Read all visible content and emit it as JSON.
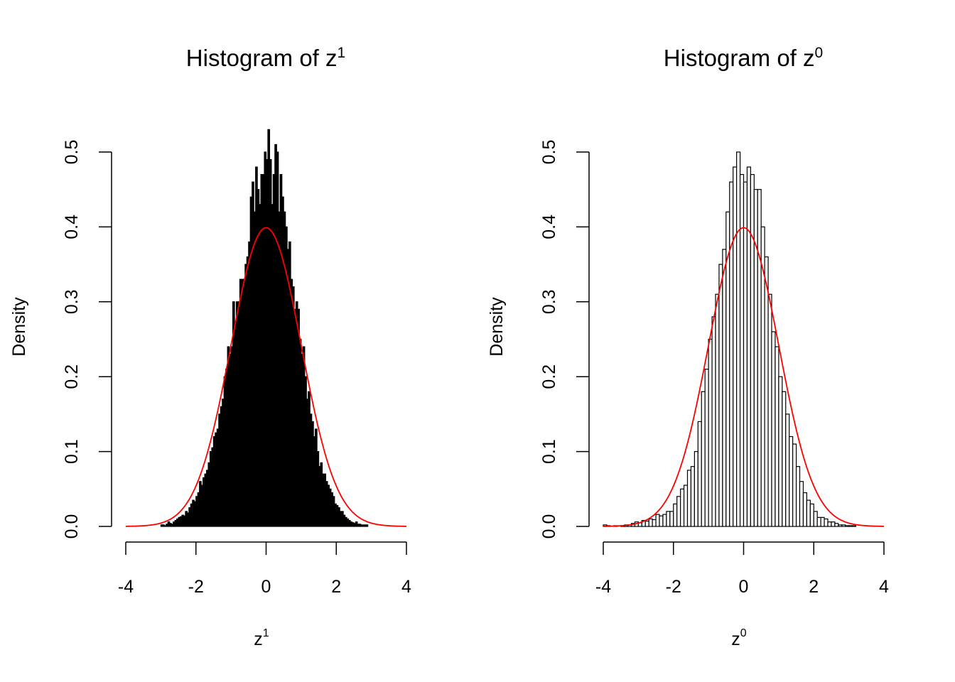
{
  "chart_data": [
    {
      "type": "bar",
      "title": "Histogram of z",
      "title_sup": "1",
      "xlabel": "z",
      "xlabel_sup": "1",
      "ylabel": "Density",
      "xlim": [
        -4,
        4
      ],
      "ylim": [
        0,
        0.5
      ],
      "xticks": [
        "-4",
        "-2",
        "0",
        "2",
        "4"
      ],
      "yticks": [
        "0.0",
        "0.1",
        "0.2",
        "0.3",
        "0.4",
        "0.5"
      ],
      "bin_width": 0.05,
      "bins_x": [
        -3.0,
        -2.95,
        -2.9,
        -2.85,
        -2.8,
        -2.75,
        -2.7,
        -2.65,
        -2.6,
        -2.55,
        -2.5,
        -2.45,
        -2.4,
        -2.35,
        -2.3,
        -2.25,
        -2.2,
        -2.15,
        -2.1,
        -2.05,
        -2.0,
        -1.95,
        -1.9,
        -1.85,
        -1.8,
        -1.75,
        -1.7,
        -1.65,
        -1.6,
        -1.55,
        -1.5,
        -1.45,
        -1.4,
        -1.35,
        -1.3,
        -1.25,
        -1.2,
        -1.15,
        -1.1,
        -1.05,
        -1.0,
        -0.95,
        -0.9,
        -0.85,
        -0.8,
        -0.75,
        -0.7,
        -0.65,
        -0.6,
        -0.55,
        -0.5,
        -0.45,
        -0.4,
        -0.35,
        -0.3,
        -0.25,
        -0.2,
        -0.15,
        -0.1,
        -0.05,
        0.0,
        0.05,
        0.1,
        0.15,
        0.2,
        0.25,
        0.3,
        0.35,
        0.4,
        0.45,
        0.5,
        0.55,
        0.6,
        0.65,
        0.7,
        0.75,
        0.8,
        0.85,
        0.9,
        0.95,
        1.0,
        1.05,
        1.1,
        1.15,
        1.2,
        1.25,
        1.3,
        1.35,
        1.4,
        1.45,
        1.5,
        1.55,
        1.6,
        1.65,
        1.7,
        1.75,
        1.8,
        1.85,
        1.9,
        1.95,
        2.0,
        2.05,
        2.1,
        2.15,
        2.2,
        2.25,
        2.3,
        2.35,
        2.4,
        2.45,
        2.5,
        2.55,
        2.6,
        2.65,
        2.7,
        2.75,
        2.8,
        2.85
      ],
      "densities": [
        0.002,
        0.002,
        0.001,
        0.003,
        0.006,
        0.004,
        0.003,
        0.006,
        0.008,
        0.01,
        0.012,
        0.013,
        0.015,
        0.014,
        0.02,
        0.018,
        0.025,
        0.03,
        0.035,
        0.033,
        0.04,
        0.045,
        0.06,
        0.055,
        0.065,
        0.07,
        0.075,
        0.085,
        0.1,
        0.105,
        0.12,
        0.125,
        0.13,
        0.15,
        0.16,
        0.17,
        0.2,
        0.21,
        0.24,
        0.23,
        0.24,
        0.3,
        0.27,
        0.3,
        0.3,
        0.33,
        0.33,
        0.33,
        0.35,
        0.36,
        0.38,
        0.44,
        0.46,
        0.42,
        0.48,
        0.45,
        0.43,
        0.47,
        0.47,
        0.5,
        0.49,
        0.53,
        0.49,
        0.43,
        0.47,
        0.51,
        0.5,
        0.42,
        0.47,
        0.44,
        0.42,
        0.4,
        0.37,
        0.38,
        0.33,
        0.32,
        0.29,
        0.3,
        0.29,
        0.25,
        0.23,
        0.24,
        0.2,
        0.17,
        0.18,
        0.15,
        0.14,
        0.12,
        0.13,
        0.1,
        0.08,
        0.085,
        0.07,
        0.07,
        0.06,
        0.055,
        0.05,
        0.045,
        0.04,
        0.03,
        0.028,
        0.025,
        0.02,
        0.02,
        0.015,
        0.012,
        0.01,
        0.008,
        0.006,
        0.005,
        0.004,
        0.006,
        0.003,
        0.003,
        0.002,
        0.002,
        0.002,
        0.002
      ],
      "curve": "standard normal density"
    },
    {
      "type": "bar",
      "title": "Histogram of z",
      "title_sup": "0",
      "xlabel": "z",
      "xlabel_sup": "0",
      "ylabel": "Density",
      "xlim": [
        -4,
        4
      ],
      "ylim": [
        0,
        0.5
      ],
      "xticks": [
        "-4",
        "-2",
        "0",
        "2",
        "4"
      ],
      "yticks": [
        "0.0",
        "0.1",
        "0.2",
        "0.3",
        "0.4",
        "0.5"
      ],
      "bin_width": 0.1,
      "bins_x": [
        -4.0,
        -3.9,
        -3.8,
        -3.7,
        -3.6,
        -3.5,
        -3.4,
        -3.3,
        -3.2,
        -3.1,
        -3.0,
        -2.9,
        -2.8,
        -2.7,
        -2.6,
        -2.5,
        -2.4,
        -2.3,
        -2.2,
        -2.1,
        -2.0,
        -1.9,
        -1.8,
        -1.7,
        -1.6,
        -1.5,
        -1.4,
        -1.3,
        -1.2,
        -1.1,
        -1.0,
        -0.9,
        -0.8,
        -0.7,
        -0.6,
        -0.5,
        -0.4,
        -0.3,
        -0.2,
        -0.1,
        0.0,
        0.1,
        0.2,
        0.3,
        0.4,
        0.5,
        0.6,
        0.7,
        0.8,
        0.9,
        1.0,
        1.1,
        1.2,
        1.3,
        1.4,
        1.5,
        1.6,
        1.7,
        1.8,
        1.9,
        2.0,
        2.1,
        2.2,
        2.3,
        2.4,
        2.5,
        2.6,
        2.7,
        2.8,
        2.9,
        3.0,
        3.1,
        3.2,
        3.3
      ],
      "densities": [
        0.002,
        0.001,
        0.0,
        0.001,
        0.0,
        0.001,
        0.002,
        0.002,
        0.004,
        0.006,
        0.005,
        0.008,
        0.007,
        0.01,
        0.009,
        0.016,
        0.014,
        0.016,
        0.02,
        0.02,
        0.03,
        0.04,
        0.05,
        0.055,
        0.075,
        0.08,
        0.1,
        0.14,
        0.18,
        0.21,
        0.25,
        0.28,
        0.31,
        0.35,
        0.37,
        0.42,
        0.46,
        0.48,
        0.5,
        0.47,
        0.46,
        0.48,
        0.47,
        0.45,
        0.45,
        0.4,
        0.36,
        0.31,
        0.26,
        0.24,
        0.2,
        0.18,
        0.15,
        0.12,
        0.11,
        0.08,
        0.06,
        0.045,
        0.035,
        0.03,
        0.02,
        0.012,
        0.012,
        0.01,
        0.006,
        0.006,
        0.004,
        0.002,
        0.002,
        0.001,
        0.001,
        0.001,
        0.0,
        0.0
      ],
      "curve": "standard normal density"
    }
  ],
  "colors": {
    "bar_fill_left": "#000000",
    "bar_fill_right": "#ffffff",
    "bar_stroke": "#000000",
    "curve": "#ff0000"
  }
}
